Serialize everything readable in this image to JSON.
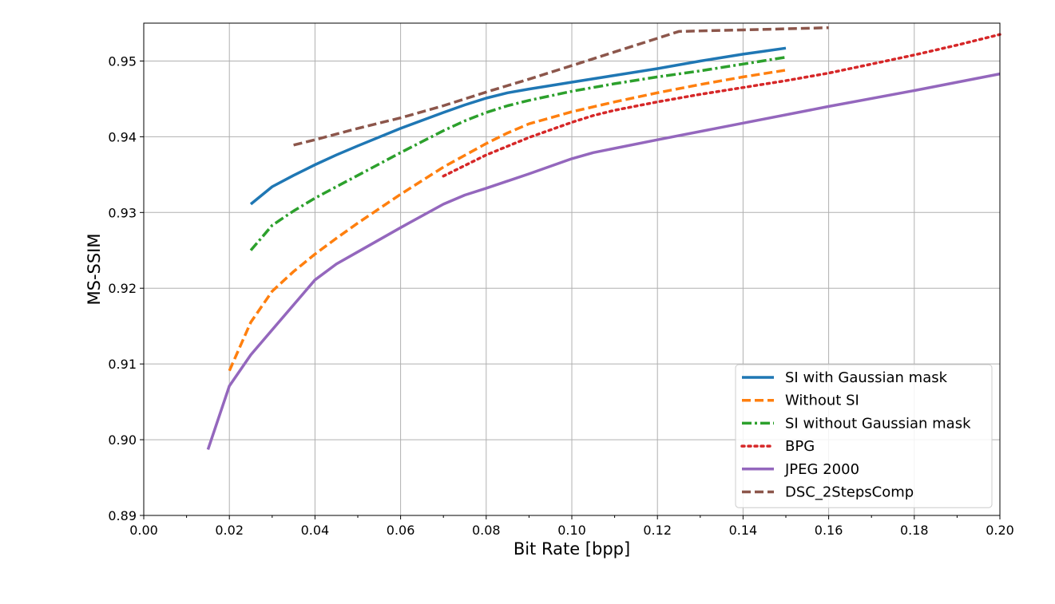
{
  "chart_data": {
    "type": "line",
    "title": "",
    "xlabel": "Bit Rate [bpp]",
    "ylabel": "MS-SSIM",
    "xlim": [
      0.0,
      0.2
    ],
    "ylim": [
      0.89,
      0.955
    ],
    "xticks": [
      0.0,
      0.02,
      0.04,
      0.06,
      0.08,
      0.1,
      0.12,
      0.14,
      0.16,
      0.18,
      0.2
    ],
    "xtick_labels": [
      "0.00",
      "0.02",
      "0.04",
      "0.06",
      "0.08",
      "0.10",
      "0.12",
      "0.14",
      "0.16",
      "0.18",
      "0.20"
    ],
    "yticks": [
      0.89,
      0.9,
      0.91,
      0.92,
      0.93,
      0.94,
      0.95
    ],
    "ytick_labels": [
      "0.89",
      "0.90",
      "0.91",
      "0.92",
      "0.93",
      "0.94",
      "0.95"
    ],
    "grid": true,
    "legend_position": "lower-right",
    "series": [
      {
        "name": "SI with Gaussian mask",
        "color": "#1f77b4",
        "dash": "solid",
        "x": [
          0.025,
          0.03,
          0.035,
          0.04,
          0.045,
          0.05,
          0.06,
          0.07,
          0.075,
          0.08,
          0.085,
          0.09,
          0.1,
          0.11,
          0.12,
          0.13,
          0.14,
          0.145,
          0.15
        ],
        "y": [
          0.9311,
          0.9334,
          0.9349,
          0.9363,
          0.9376,
          0.9388,
          0.9411,
          0.9432,
          0.9442,
          0.9451,
          0.9458,
          0.9463,
          0.9472,
          0.9481,
          0.949,
          0.95,
          0.9509,
          0.9513,
          0.9517
        ]
      },
      {
        "name": "Without SI",
        "color": "#ff7f0e",
        "dash": "dashed",
        "x": [
          0.02,
          0.025,
          0.03,
          0.035,
          0.04,
          0.045,
          0.05,
          0.06,
          0.07,
          0.08,
          0.085,
          0.09,
          0.1,
          0.11,
          0.12,
          0.13,
          0.14,
          0.15
        ],
        "y": [
          0.9091,
          0.9155,
          0.9196,
          0.9222,
          0.9245,
          0.9266,
          0.9286,
          0.9324,
          0.936,
          0.9391,
          0.9405,
          0.9417,
          0.9433,
          0.9446,
          0.9458,
          0.9469,
          0.9479,
          0.9488
        ]
      },
      {
        "name": "SI without Gaussian mask",
        "color": "#2ca02c",
        "dash": "dashdot",
        "x": [
          0.025,
          0.03,
          0.035,
          0.04,
          0.045,
          0.05,
          0.06,
          0.07,
          0.075,
          0.08,
          0.085,
          0.09,
          0.1,
          0.11,
          0.12,
          0.13,
          0.14,
          0.15
        ],
        "y": [
          0.925,
          0.9283,
          0.9302,
          0.9319,
          0.9334,
          0.9349,
          0.9379,
          0.9408,
          0.9421,
          0.9432,
          0.9441,
          0.9448,
          0.946,
          0.947,
          0.9479,
          0.9487,
          0.9496,
          0.9505
        ]
      },
      {
        "name": "BPG",
        "color": "#d62728",
        "dash": "dotted",
        "x": [
          0.07,
          0.08,
          0.09,
          0.1,
          0.105,
          0.11,
          0.12,
          0.13,
          0.14,
          0.15,
          0.16,
          0.17,
          0.18,
          0.19,
          0.2
        ],
        "y": [
          0.9348,
          0.9376,
          0.9399,
          0.9419,
          0.9428,
          0.9435,
          0.9446,
          0.9456,
          0.9465,
          0.9474,
          0.9484,
          0.9496,
          0.9508,
          0.9521,
          0.9535
        ]
      },
      {
        "name": "JPEG 2000",
        "color": "#9467bd",
        "dash": "solid",
        "x": [
          0.015,
          0.02,
          0.025,
          0.03,
          0.035,
          0.04,
          0.045,
          0.05,
          0.06,
          0.07,
          0.075,
          0.08,
          0.09,
          0.1,
          0.105,
          0.12,
          0.14,
          0.16,
          0.18,
          0.2
        ],
        "y": [
          0.8987,
          0.9071,
          0.9112,
          0.9145,
          0.9178,
          0.9211,
          0.9232,
          0.9248,
          0.928,
          0.9311,
          0.9323,
          0.9332,
          0.9351,
          0.9371,
          0.9379,
          0.9396,
          0.9418,
          0.944,
          0.9461,
          0.9483
        ]
      },
      {
        "name": "DSC_2StepsComp",
        "color": "#8c564b",
        "dash": "dashed",
        "x": [
          0.035,
          0.04,
          0.05,
          0.06,
          0.07,
          0.08,
          0.09,
          0.1,
          0.11,
          0.12,
          0.125,
          0.14,
          0.16
        ],
        "y": [
          0.9389,
          0.9396,
          0.9411,
          0.9425,
          0.9441,
          0.9459,
          0.9476,
          0.9494,
          0.9512,
          0.953,
          0.9539,
          0.9541,
          0.9544
        ]
      }
    ]
  }
}
